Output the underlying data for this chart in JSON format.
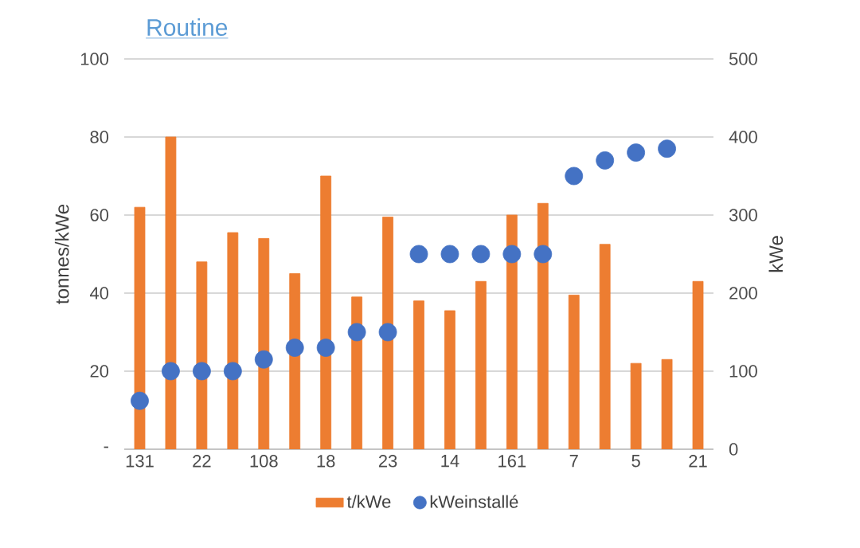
{
  "chart_data": {
    "type": "bar",
    "title": "Routine",
    "categories": [
      "131",
      null,
      "22",
      null,
      "108",
      null,
      "18",
      null,
      "23",
      null,
      "14",
      null,
      "161",
      null,
      "7",
      null,
      "5",
      null,
      "21"
    ],
    "ylabel": "tonnes/kWe",
    "y2label": "kWe",
    "ylim": [
      0,
      100
    ],
    "yticks": [
      {
        "value": 0,
        "label": "-"
      },
      20,
      40,
      60,
      80,
      100
    ],
    "y2lim": [
      0,
      500
    ],
    "y2ticks": [
      0,
      100,
      200,
      300,
      400,
      500
    ],
    "grid": "y",
    "legend": "bottom",
    "series": [
      {
        "name": "t/kWe",
        "color": "#ed7d31",
        "values": [
          62,
          80,
          48,
          55.5,
          54,
          45,
          70,
          39,
          59.5,
          38,
          35.5,
          43,
          60,
          63,
          39.5,
          52.5,
          22,
          23,
          43
        ]
      },
      {
        "name": "kWeinstallé",
        "type": "scatter",
        "axis": "y2",
        "marker": "circle",
        "color": "#4472c4",
        "values": [
          62,
          100,
          100,
          100,
          115,
          130,
          130,
          150,
          150,
          250,
          250,
          250,
          250,
          250,
          350,
          370,
          380,
          385,
          null
        ]
      }
    ]
  }
}
